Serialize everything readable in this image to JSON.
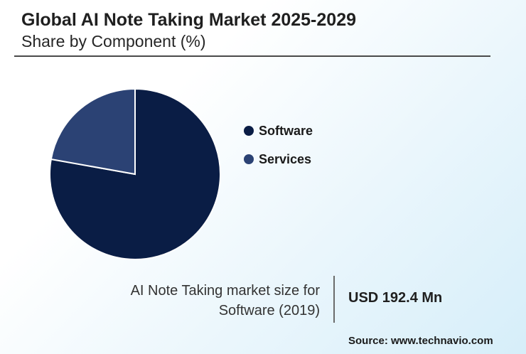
{
  "header": {
    "title": "Global AI Note Taking Market 2025-2029",
    "subtitle": "Share by Component (%)"
  },
  "chart_data": {
    "type": "pie",
    "series": [
      {
        "name": "Software",
        "value": 77.8,
        "color": "#0a1d45"
      },
      {
        "name": "Services",
        "value": 22.2,
        "color": "#2b4274"
      }
    ],
    "legend_position": "right"
  },
  "footer": {
    "market_label_line1": "AI Note Taking market size for",
    "market_label_line2": "Software (2019)",
    "market_value": "USD 192.4 Mn",
    "source": "Source: www.technavio.com"
  }
}
